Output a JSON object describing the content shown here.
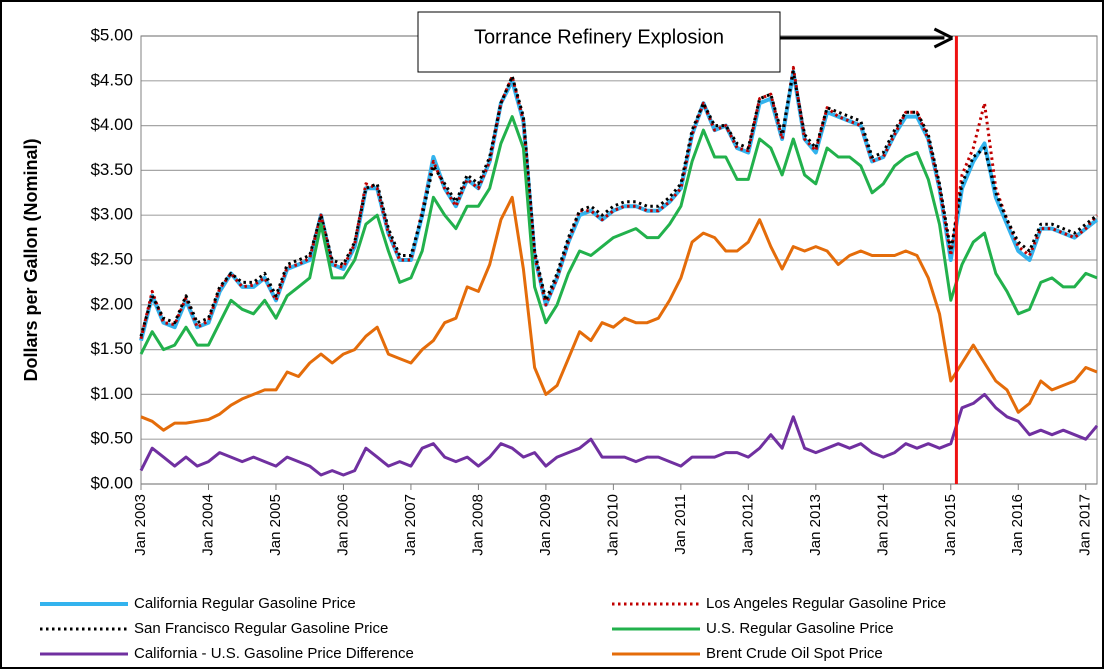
{
  "chart_data": {
    "type": "line",
    "y_label": "Dollars per Gallon (Nominal)",
    "x": [
      "2003-01",
      "2003-03",
      "2003-05",
      "2003-07",
      "2003-09",
      "2003-11",
      "2004-01",
      "2004-03",
      "2004-05",
      "2004-07",
      "2004-09",
      "2004-11",
      "2005-01",
      "2005-03",
      "2005-05",
      "2005-07",
      "2005-09",
      "2005-11",
      "2006-01",
      "2006-03",
      "2006-05",
      "2006-07",
      "2006-09",
      "2006-11",
      "2007-01",
      "2007-03",
      "2007-05",
      "2007-07",
      "2007-09",
      "2007-11",
      "2008-01",
      "2008-03",
      "2008-05",
      "2008-07",
      "2008-09",
      "2008-11",
      "2009-01",
      "2009-03",
      "2009-05",
      "2009-07",
      "2009-09",
      "2009-11",
      "2010-01",
      "2010-03",
      "2010-05",
      "2010-07",
      "2010-09",
      "2010-11",
      "2011-01",
      "2011-03",
      "2011-05",
      "2011-07",
      "2011-09",
      "2011-11",
      "2012-01",
      "2012-03",
      "2012-05",
      "2012-07",
      "2012-09",
      "2012-11",
      "2013-01",
      "2013-03",
      "2013-05",
      "2013-07",
      "2013-09",
      "2013-11",
      "2014-01",
      "2014-03",
      "2014-05",
      "2014-07",
      "2014-09",
      "2014-11",
      "2015-01",
      "2015-03",
      "2015-05",
      "2015-07",
      "2015-09",
      "2015-11",
      "2016-01",
      "2016-03",
      "2016-05",
      "2016-07",
      "2016-09",
      "2016-11",
      "2017-01",
      "2017-03"
    ],
    "series": [
      {
        "name": "California Regular Gasoline Price",
        "color": "#33b3ee",
        "width": 4,
        "dash": "solid",
        "values": [
          1.6,
          2.1,
          1.8,
          1.75,
          2.05,
          1.75,
          1.8,
          2.15,
          2.35,
          2.2,
          2.2,
          2.3,
          2.05,
          2.4,
          2.45,
          2.5,
          3.0,
          2.45,
          2.4,
          2.65,
          3.3,
          3.3,
          2.8,
          2.5,
          2.5,
          3.0,
          3.65,
          3.3,
          3.1,
          3.4,
          3.3,
          3.6,
          4.25,
          4.5,
          4.05,
          2.55,
          2.0,
          2.3,
          2.7,
          3.0,
          3.05,
          2.95,
          3.05,
          3.1,
          3.1,
          3.05,
          3.05,
          3.15,
          3.3,
          3.9,
          4.25,
          3.95,
          4.0,
          3.75,
          3.7,
          4.25,
          4.3,
          3.85,
          4.6,
          3.85,
          3.7,
          4.15,
          4.1,
          4.05,
          4.0,
          3.6,
          3.65,
          3.9,
          4.1,
          4.1,
          3.85,
          3.3,
          2.5,
          3.3,
          3.6,
          3.8,
          3.2,
          2.9,
          2.6,
          2.5,
          2.85,
          2.85,
          2.8,
          2.75,
          2.85,
          2.95
        ]
      },
      {
        "name": "Los Angeles Regular Gasoline Price",
        "color": "#c00000",
        "width": 3,
        "dash": "dotted",
        "values": [
          1.62,
          2.15,
          1.8,
          1.78,
          2.08,
          1.75,
          1.82,
          2.18,
          2.35,
          2.2,
          2.22,
          2.3,
          2.05,
          2.42,
          2.45,
          2.52,
          3.0,
          2.45,
          2.42,
          2.68,
          3.35,
          3.3,
          2.8,
          2.5,
          2.5,
          3.05,
          3.6,
          3.3,
          3.1,
          3.4,
          3.3,
          3.6,
          4.25,
          4.55,
          4.05,
          2.55,
          2.0,
          2.3,
          2.7,
          3.05,
          3.05,
          2.95,
          3.05,
          3.1,
          3.1,
          3.05,
          3.05,
          3.15,
          3.3,
          3.9,
          4.25,
          3.95,
          4.0,
          3.75,
          3.72,
          4.3,
          4.35,
          3.85,
          4.65,
          3.85,
          3.72,
          4.2,
          4.1,
          4.05,
          4.0,
          3.6,
          3.65,
          3.9,
          4.15,
          4.15,
          3.85,
          3.3,
          2.55,
          3.45,
          3.75,
          4.25,
          3.3,
          2.95,
          2.65,
          2.55,
          2.85,
          2.85,
          2.8,
          2.75,
          2.85,
          3.0
        ]
      },
      {
        "name": "San Francisco Regular Gasoline Price",
        "color": "#000000",
        "width": 3,
        "dash": "dotted",
        "values": [
          1.65,
          2.1,
          1.85,
          1.8,
          2.1,
          1.8,
          1.85,
          2.2,
          2.35,
          2.25,
          2.25,
          2.35,
          2.1,
          2.45,
          2.5,
          2.55,
          3.0,
          2.5,
          2.45,
          2.7,
          3.3,
          3.35,
          2.85,
          2.55,
          2.55,
          3.0,
          3.55,
          3.35,
          3.15,
          3.45,
          3.35,
          3.65,
          4.25,
          4.55,
          4.1,
          2.6,
          2.05,
          2.35,
          2.75,
          3.05,
          3.1,
          3.0,
          3.1,
          3.15,
          3.15,
          3.1,
          3.1,
          3.2,
          3.35,
          3.95,
          4.25,
          4.0,
          4.0,
          3.8,
          3.75,
          4.3,
          4.35,
          3.9,
          4.6,
          3.9,
          3.75,
          4.2,
          4.15,
          4.1,
          4.05,
          3.65,
          3.7,
          3.95,
          4.15,
          4.15,
          3.9,
          3.35,
          2.6,
          3.35,
          3.65,
          3.75,
          3.25,
          2.95,
          2.7,
          2.6,
          2.9,
          2.9,
          2.85,
          2.8,
          2.9,
          3.0
        ]
      },
      {
        "name": "U.S. Regular Gasoline Price",
        "color": "#22b14c",
        "width": 3,
        "dash": "solid",
        "values": [
          1.45,
          1.7,
          1.5,
          1.55,
          1.75,
          1.55,
          1.55,
          1.8,
          2.05,
          1.95,
          1.9,
          2.05,
          1.85,
          2.1,
          2.2,
          2.3,
          2.9,
          2.3,
          2.3,
          2.5,
          2.9,
          3.0,
          2.6,
          2.25,
          2.3,
          2.6,
          3.2,
          3.0,
          2.85,
          3.1,
          3.1,
          3.3,
          3.8,
          4.1,
          3.75,
          2.2,
          1.8,
          2.0,
          2.35,
          2.6,
          2.55,
          2.65,
          2.75,
          2.8,
          2.85,
          2.75,
          2.75,
          2.9,
          3.1,
          3.6,
          3.95,
          3.65,
          3.65,
          3.4,
          3.4,
          3.85,
          3.75,
          3.45,
          3.85,
          3.45,
          3.35,
          3.75,
          3.65,
          3.65,
          3.55,
          3.25,
          3.35,
          3.55,
          3.65,
          3.7,
          3.4,
          2.9,
          2.05,
          2.45,
          2.7,
          2.8,
          2.35,
          2.15,
          1.9,
          1.95,
          2.25,
          2.3,
          2.2,
          2.2,
          2.35,
          2.3
        ]
      },
      {
        "name": "California - U.S. Gasoline Price Difference",
        "color": "#7030a0",
        "width": 3,
        "dash": "solid",
        "values": [
          0.15,
          0.4,
          0.3,
          0.2,
          0.3,
          0.2,
          0.25,
          0.35,
          0.3,
          0.25,
          0.3,
          0.25,
          0.2,
          0.3,
          0.25,
          0.2,
          0.1,
          0.15,
          0.1,
          0.15,
          0.4,
          0.3,
          0.2,
          0.25,
          0.2,
          0.4,
          0.45,
          0.3,
          0.25,
          0.3,
          0.2,
          0.3,
          0.45,
          0.4,
          0.3,
          0.35,
          0.2,
          0.3,
          0.35,
          0.4,
          0.5,
          0.3,
          0.3,
          0.3,
          0.25,
          0.3,
          0.3,
          0.25,
          0.2,
          0.3,
          0.3,
          0.3,
          0.35,
          0.35,
          0.3,
          0.4,
          0.55,
          0.4,
          0.75,
          0.4,
          0.35,
          0.4,
          0.45,
          0.4,
          0.45,
          0.35,
          0.3,
          0.35,
          0.45,
          0.4,
          0.45,
          0.4,
          0.45,
          0.85,
          0.9,
          1.0,
          0.85,
          0.75,
          0.7,
          0.55,
          0.6,
          0.55,
          0.6,
          0.55,
          0.5,
          0.65
        ]
      },
      {
        "name": "Brent Crude Oil Spot Price",
        "color": "#e46c0a",
        "width": 3,
        "dash": "solid",
        "values": [
          0.75,
          0.7,
          0.6,
          0.68,
          0.68,
          0.7,
          0.72,
          0.78,
          0.88,
          0.95,
          1.0,
          1.05,
          1.05,
          1.25,
          1.2,
          1.35,
          1.45,
          1.35,
          1.45,
          1.5,
          1.65,
          1.75,
          1.45,
          1.4,
          1.35,
          1.5,
          1.6,
          1.8,
          1.85,
          2.2,
          2.15,
          2.45,
          2.95,
          3.2,
          2.4,
          1.3,
          1.0,
          1.1,
          1.4,
          1.7,
          1.6,
          1.8,
          1.75,
          1.85,
          1.8,
          1.8,
          1.85,
          2.05,
          2.3,
          2.7,
          2.8,
          2.75,
          2.6,
          2.6,
          2.7,
          2.95,
          2.65,
          2.4,
          2.65,
          2.6,
          2.65,
          2.6,
          2.45,
          2.55,
          2.6,
          2.55,
          2.55,
          2.55,
          2.6,
          2.55,
          2.3,
          1.9,
          1.15,
          1.35,
          1.55,
          1.35,
          1.15,
          1.05,
          0.8,
          0.9,
          1.15,
          1.05,
          1.1,
          1.15,
          1.3,
          1.25
        ]
      }
    ],
    "xlim": [
      "2003-01",
      "2017-03"
    ],
    "xticks": [
      {
        "value": "2003-01",
        "label": "Jan 2003"
      },
      {
        "value": "2004-01",
        "label": "Jan 2004"
      },
      {
        "value": "2005-01",
        "label": "Jan 2005"
      },
      {
        "value": "2006-01",
        "label": "Jan 2006"
      },
      {
        "value": "2007-01",
        "label": "Jan 2007"
      },
      {
        "value": "2008-01",
        "label": "Jan 2008"
      },
      {
        "value": "2009-01",
        "label": "Jan 2009"
      },
      {
        "value": "2010-01",
        "label": "Jan 2010"
      },
      {
        "value": "2011-01",
        "label": "Jan 2011"
      },
      {
        "value": "2012-01",
        "label": "Jan 2012"
      },
      {
        "value": "2013-01",
        "label": "Jan 2013"
      },
      {
        "value": "2014-01",
        "label": "Jan 2014"
      },
      {
        "value": "2015-01",
        "label": "Jan 2015"
      },
      {
        "value": "2016-01",
        "label": "Jan 2016"
      },
      {
        "value": "2017-01",
        "label": "Jan 2017"
      }
    ],
    "ylim": [
      0,
      5
    ],
    "yticks": [
      {
        "value": 0,
        "label": "$0.00"
      },
      {
        "value": 0.5,
        "label": "$0.50"
      },
      {
        "value": 1,
        "label": "$1.00"
      },
      {
        "value": 1.5,
        "label": "$1.50"
      },
      {
        "value": 2,
        "label": "$2.00"
      },
      {
        "value": 2.5,
        "label": "$2.50"
      },
      {
        "value": 3,
        "label": "$3.00"
      },
      {
        "value": 3.5,
        "label": "$3.50"
      },
      {
        "value": 4,
        "label": "$4.00"
      },
      {
        "value": 4.5,
        "label": "$4.50"
      },
      {
        "value": 5,
        "label": "$5.00"
      }
    ],
    "grid": true,
    "legend": "bottom",
    "annotation": {
      "text": "Torrance Refinery Explosion",
      "x": "2015-02",
      "color": "#ee1111"
    }
  }
}
